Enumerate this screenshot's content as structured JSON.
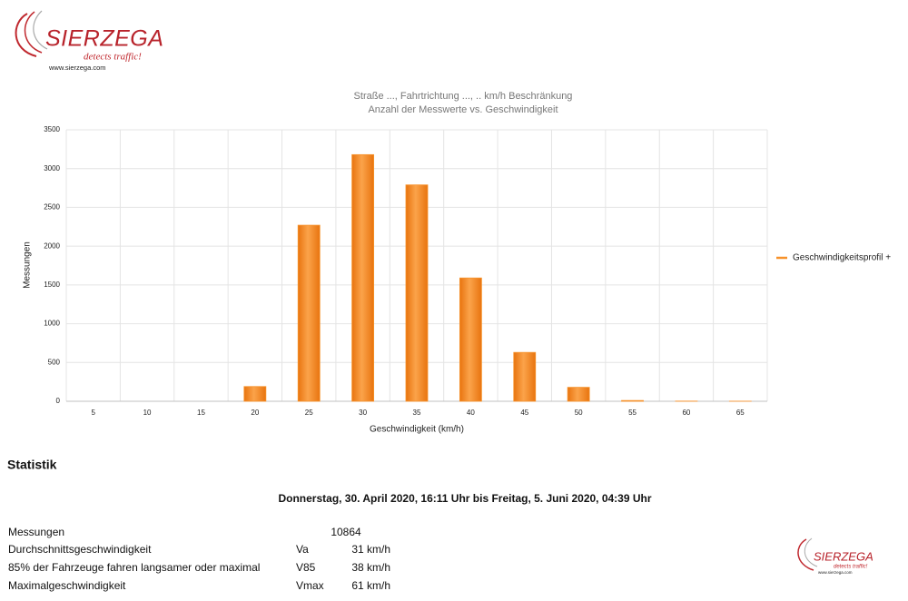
{
  "logo": {
    "name": "SIERZEGA",
    "slogan": "detects traffic!",
    "url": "www.sierzega.com"
  },
  "chart_data": {
    "type": "bar",
    "title": "Straße ..., Fahrtrichtung ..., .. km/h Beschränkung",
    "subtitle": "Anzahl der Messwerte vs. Geschwindigkeit",
    "x_label": "Geschwindigkeit (km/h)",
    "y_label": "Messungen",
    "categories": [
      5,
      10,
      15,
      20,
      25,
      30,
      35,
      40,
      45,
      50,
      55,
      60,
      65
    ],
    "series": [
      {
        "name": "Geschwindigkeitsprofil +",
        "color": "#f7922a",
        "values": [
          0,
          0,
          0,
          190,
          2270,
          3180,
          2790,
          1590,
          630,
          180,
          10,
          2,
          1
        ]
      }
    ],
    "ylim": [
      0,
      3500
    ],
    "yticks": [
      0,
      500,
      1000,
      1500,
      2000,
      2500,
      3000,
      3500
    ],
    "grid": true,
    "legend": "right"
  },
  "statistik": {
    "heading": "Statistik",
    "period": "Donnerstag, 30. April 2020, 16:11 Uhr bis Freitag, 5. Juni 2020, 04:39 Uhr",
    "rows": [
      {
        "label": "Messungen",
        "value": "10864"
      },
      {
        "label": "Durchschnittsgeschwindigkeit",
        "symbol": "Va",
        "value": "31 km/h"
      },
      {
        "label": "85% der Fahrzeuge fahren langsamer oder maximal",
        "symbol": "V85",
        "value": "38 km/h"
      },
      {
        "label": "Maximalgeschwindigkeit",
        "symbol": "Vmax",
        "value": "61 km/h"
      }
    ]
  }
}
